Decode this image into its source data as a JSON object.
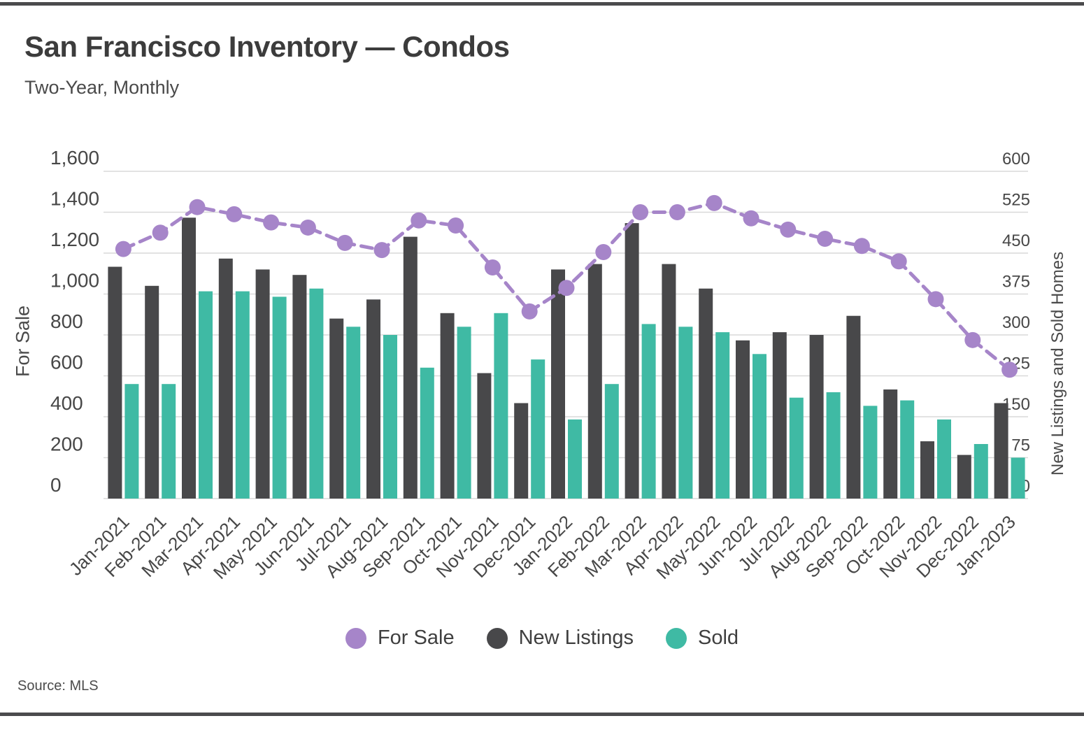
{
  "page": {
    "title": "San Francisco Inventory — Condos",
    "subtitle": "Two-Year, Monthly",
    "source": "Source: MLS"
  },
  "legend": [
    {
      "label": "For Sale",
      "color": "#a685c9"
    },
    {
      "label": "New Listings",
      "color": "#48484a"
    },
    {
      "label": "Sold",
      "color": "#3fbaa4"
    }
  ],
  "chart_data": {
    "type": "bar",
    "subtype": "combo-bar-line-dual-axis",
    "title": "San Francisco Inventory — Condos",
    "subtitle": "Two-Year, Monthly",
    "grid": true,
    "legend_position": "bottom",
    "categories": [
      "Jan-2021",
      "Feb-2021",
      "Mar-2021",
      "Apr-2021",
      "May-2021",
      "Jun-2021",
      "Jul-2021",
      "Aug-2021",
      "Sep-2021",
      "Oct-2021",
      "Nov-2021",
      "Dec-2021",
      "Jan-2022",
      "Feb-2022",
      "Mar-2022",
      "Apr-2022",
      "May-2022",
      "Jun-2022",
      "Jul-2022",
      "Aug-2022",
      "Sep-2022",
      "Oct-2022",
      "Nov-2022",
      "Dec-2022",
      "Jan-2023"
    ],
    "series": [
      {
        "name": "For Sale",
        "type": "line",
        "axis": "left",
        "color": "#a685c9",
        "values": [
          1220,
          1300,
          1425,
          1390,
          1350,
          1325,
          1250,
          1215,
          1360,
          1335,
          1130,
          915,
          1030,
          1205,
          1400,
          1400,
          1445,
          1370,
          1315,
          1270,
          1235,
          1160,
          975,
          775,
          630
        ]
      },
      {
        "name": "New Listings",
        "type": "bar",
        "axis": "right",
        "color": "#48484a",
        "values": [
          425,
          390,
          515,
          440,
          420,
          410,
          330,
          365,
          480,
          340,
          230,
          175,
          420,
          430,
          505,
          430,
          385,
          290,
          305,
          300,
          335,
          200,
          105,
          80,
          175
        ]
      },
      {
        "name": "Sold",
        "type": "bar",
        "axis": "right",
        "color": "#3fbaa4",
        "values": [
          210,
          210,
          380,
          380,
          370,
          385,
          315,
          300,
          240,
          315,
          340,
          255,
          145,
          210,
          320,
          315,
          305,
          265,
          185,
          195,
          170,
          180,
          145,
          100,
          75
        ]
      }
    ],
    "left_axis": {
      "label": "For Sale",
      "min": 0,
      "max": 1600,
      "ticks": [
        0,
        200,
        400,
        600,
        800,
        1000,
        1200,
        1400,
        1600
      ]
    },
    "right_axis": {
      "label": "New Listings and Sold Homes",
      "min": 0,
      "max": 600,
      "ticks": [
        0,
        75,
        150,
        225,
        300,
        375,
        450,
        525,
        600
      ]
    },
    "colors": {
      "grid": "#d9d9d9",
      "text": "#474747"
    }
  }
}
